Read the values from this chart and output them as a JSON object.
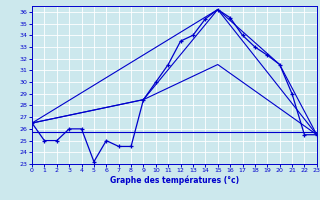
{
  "xlabel": "Graphe des températures (°c)",
  "bg_color": "#cce8ed",
  "line_color": "#0000cc",
  "grid_color": "#ffffff",
  "xlim": [
    0,
    23
  ],
  "ylim": [
    23,
    36.5
  ],
  "yticks": [
    23,
    24,
    25,
    26,
    27,
    28,
    29,
    30,
    31,
    32,
    33,
    34,
    35,
    36
  ],
  "xticks": [
    0,
    1,
    2,
    3,
    4,
    5,
    6,
    7,
    8,
    9,
    10,
    11,
    12,
    13,
    14,
    15,
    16,
    17,
    18,
    19,
    20,
    21,
    22,
    23
  ],
  "curve1_x": [
    0,
    1,
    2,
    3,
    4,
    5,
    6,
    7,
    8,
    9,
    10,
    11,
    12,
    13,
    14,
    15,
    16,
    17,
    18,
    19,
    20,
    21,
    22,
    23
  ],
  "curve1_y": [
    26.5,
    25.0,
    25.0,
    26.0,
    26.0,
    23.2,
    25.0,
    24.5,
    24.5,
    28.5,
    30.0,
    31.5,
    33.5,
    34.0,
    35.4,
    36.2,
    35.5,
    34.0,
    33.0,
    32.3,
    31.5,
    29.0,
    25.5,
    25.5
  ],
  "curve2_x": [
    0,
    15,
    23
  ],
  "curve2_y": [
    26.5,
    36.2,
    25.5
  ],
  "curve3_x": [
    0,
    9,
    15,
    20,
    23
  ],
  "curve3_y": [
    26.5,
    28.5,
    36.2,
    31.5,
    25.5
  ],
  "curve4_x": [
    0,
    9,
    15,
    23
  ],
  "curve4_y": [
    26.5,
    28.5,
    31.5,
    25.5
  ],
  "hline_x": [
    0,
    23
  ],
  "hline_y": [
    25.7,
    25.7
  ]
}
